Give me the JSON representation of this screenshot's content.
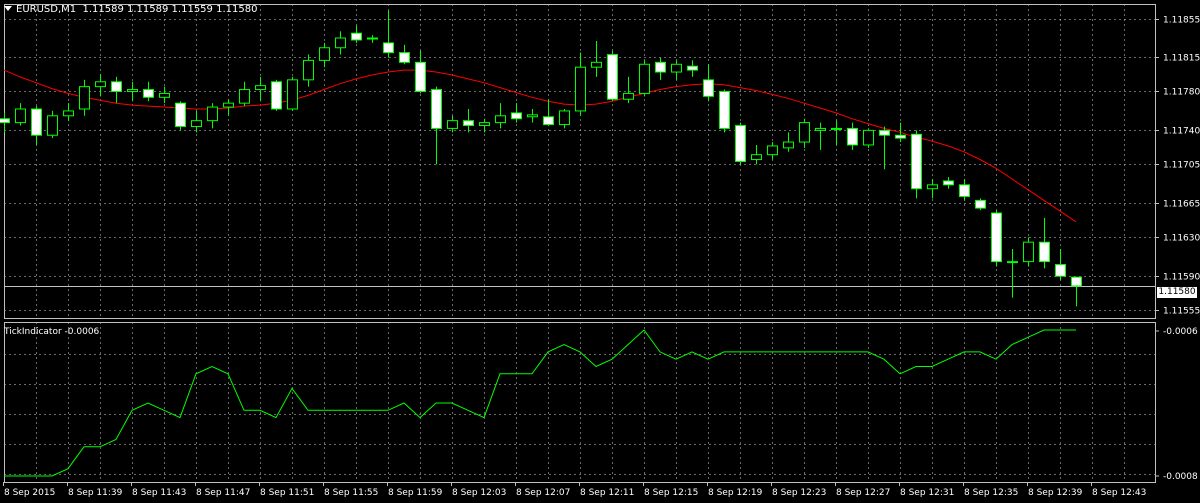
{
  "chart_header": {
    "symbol_period": "EURUSD,M1",
    "ohlc": "1.11589 1.11589 1.11559 1.11580"
  },
  "indicator_header": {
    "name": "TickIndicator",
    "value": "-0.0006"
  },
  "current_price_label": "1.11580",
  "indicator_axis_labels": [
    "-0.0006",
    "-0.0008"
  ],
  "colors": {
    "background": "#000000",
    "grid": "#c0c0c0",
    "bull_candle_body": "#000000",
    "bear_candle_body": "#ffffff",
    "candle_wick": "#00ff00",
    "moving_average": "#ff0000",
    "indicator_line": "#00ff00",
    "text": "#ffffff"
  },
  "chart_data": [
    {
      "type": "candlestick",
      "title": "EURUSD,M1",
      "ylim": [
        1.11547,
        1.1187
      ],
      "y_ticks": [
        "1.11855",
        "1.11815",
        "1.11780",
        "1.11740",
        "1.11705",
        "1.11665",
        "1.11630",
        "1.11590",
        "1.11555"
      ],
      "x_ticks": [
        "8 Sep 2015",
        "8 Sep 11:39",
        "8 Sep 11:43",
        "8 Sep 11:47",
        "8 Sep 11:51",
        "8 Sep 11:55",
        "8 Sep 11:59",
        "8 Sep 12:03",
        "8 Sep 12:07",
        "8 Sep 12:11",
        "8 Sep 12:15",
        "8 Sep 12:19",
        "8 Sep 12:23",
        "8 Sep 12:27",
        "8 Sep 12:31",
        "8 Sep 12:35",
        "8 Sep 12:39",
        "8 Sep 12:43"
      ],
      "grid": true,
      "candles": [
        [
          1.11752,
          1.11758,
          1.11738,
          1.11748
        ],
        [
          1.11748,
          1.11768,
          1.11745,
          1.11762
        ],
        [
          1.11762,
          1.11765,
          1.11725,
          1.11735
        ],
        [
          1.11735,
          1.1176,
          1.11732,
          1.11755
        ],
        [
          1.11755,
          1.11768,
          1.1175,
          1.1176
        ],
        [
          1.11762,
          1.11792,
          1.11755,
          1.11785
        ],
        [
          1.11785,
          1.11798,
          1.11775,
          1.1179
        ],
        [
          1.1179,
          1.11795,
          1.11768,
          1.1178
        ],
        [
          1.1178,
          1.1179,
          1.1177,
          1.11782
        ],
        [
          1.11782,
          1.1179,
          1.1177,
          1.11774
        ],
        [
          1.11774,
          1.11785,
          1.11768,
          1.11778
        ],
        [
          1.11768,
          1.1177,
          1.1174,
          1.11744
        ],
        [
          1.11744,
          1.1176,
          1.11738,
          1.1175
        ],
        [
          1.1175,
          1.11768,
          1.11742,
          1.11764
        ],
        [
          1.11764,
          1.11772,
          1.11755,
          1.11768
        ],
        [
          1.11768,
          1.1179,
          1.11765,
          1.11782
        ],
        [
          1.11782,
          1.11795,
          1.1177,
          1.11786
        ],
        [
          1.1179,
          1.11792,
          1.1176,
          1.11762
        ],
        [
          1.11762,
          1.11795,
          1.1176,
          1.11792
        ],
        [
          1.11792,
          1.11818,
          1.11785,
          1.11812
        ],
        [
          1.11812,
          1.1183,
          1.11805,
          1.11825
        ],
        [
          1.11825,
          1.11842,
          1.11818,
          1.11835
        ],
        [
          1.1184,
          1.11848,
          1.1183,
          1.11833
        ],
        [
          1.11835,
          1.11838,
          1.1183,
          1.11835
        ],
        [
          1.1183,
          1.11863,
          1.11815,
          1.1182
        ],
        [
          1.1182,
          1.11828,
          1.11808,
          1.1181
        ],
        [
          1.1181,
          1.11822,
          1.11778,
          1.1178
        ],
        [
          1.11782,
          1.11785,
          1.11705,
          1.11742
        ],
        [
          1.11742,
          1.11755,
          1.11738,
          1.1175
        ],
        [
          1.1175,
          1.11762,
          1.11738,
          1.11745
        ],
        [
          1.11745,
          1.11752,
          1.11738,
          1.11748
        ],
        [
          1.11748,
          1.11768,
          1.11742,
          1.11755
        ],
        [
          1.11758,
          1.11768,
          1.11748,
          1.11752
        ],
        [
          1.11754,
          1.11762,
          1.11748,
          1.11756
        ],
        [
          1.11754,
          1.11772,
          1.11745,
          1.11746
        ],
        [
          1.11746,
          1.11762,
          1.11742,
          1.1176
        ],
        [
          1.1176,
          1.1182,
          1.11755,
          1.11805
        ],
        [
          1.11805,
          1.11832,
          1.11795,
          1.1181
        ],
        [
          1.11818,
          1.11822,
          1.1177,
          1.11772
        ],
        [
          1.11772,
          1.11795,
          1.11768,
          1.11778
        ],
        [
          1.11778,
          1.11812,
          1.11775,
          1.11808
        ],
        [
          1.1181,
          1.11815,
          1.11792,
          1.118
        ],
        [
          1.118,
          1.11812,
          1.11792,
          1.11808
        ],
        [
          1.11806,
          1.11812,
          1.11795,
          1.11802
        ],
        [
          1.11792,
          1.11808,
          1.1177,
          1.11775
        ],
        [
          1.1178,
          1.11782,
          1.11738,
          1.11742
        ],
        [
          1.11745,
          1.11748,
          1.11705,
          1.11708
        ],
        [
          1.1171,
          1.11725,
          1.11705,
          1.11715
        ],
        [
          1.11715,
          1.11728,
          1.1171,
          1.11724
        ],
        [
          1.11722,
          1.11738,
          1.11718,
          1.11728
        ],
        [
          1.11728,
          1.11752,
          1.11722,
          1.11748
        ],
        [
          1.1174,
          1.11748,
          1.1172,
          1.11742
        ],
        [
          1.11742,
          1.1175,
          1.11725,
          1.11742
        ],
        [
          1.11742,
          1.11748,
          1.1172,
          1.11725
        ],
        [
          1.11725,
          1.11742,
          1.11722,
          1.1174
        ],
        [
          1.1174,
          1.11744,
          1.117,
          1.11735
        ],
        [
          1.11735,
          1.11748,
          1.11728,
          1.11732
        ],
        [
          1.11736,
          1.1174,
          1.1167,
          1.1168
        ],
        [
          1.1168,
          1.1169,
          1.1167,
          1.11684
        ],
        [
          1.11688,
          1.11692,
          1.1168,
          1.11684
        ],
        [
          1.11684,
          1.1169,
          1.11668,
          1.11672
        ],
        [
          1.11668,
          1.1167,
          1.11658,
          1.1166
        ],
        [
          1.11655,
          1.11658,
          1.116,
          1.11605
        ],
        [
          1.11605,
          1.11618,
          1.11568,
          1.11605
        ],
        [
          1.11605,
          1.1163,
          1.116,
          1.11625
        ],
        [
          1.11625,
          1.1165,
          1.11598,
          1.11605
        ],
        [
          1.11602,
          1.11618,
          1.11586,
          1.1159
        ],
        [
          1.11589,
          1.11589,
          1.11559,
          1.1158
        ]
      ],
      "moving_average": [
        1.11802,
        1.11795,
        1.11789,
        1.11783,
        1.11778,
        1.11774,
        1.11771,
        1.11768,
        1.11766,
        1.11765,
        1.11764,
        1.11763,
        1.11762,
        1.11762,
        1.11763,
        1.11765,
        1.11766,
        1.11768,
        1.11771,
        1.11776,
        1.11782,
        1.11788,
        1.11793,
        1.11797,
        1.118,
        1.11802,
        1.11802,
        1.118,
        1.11797,
        1.11793,
        1.11789,
        1.11784,
        1.11779,
        1.11774,
        1.1177,
        1.11767,
        1.11766,
        1.11767,
        1.1177,
        1.11774,
        1.11778,
        1.11782,
        1.11785,
        1.11787,
        1.11788,
        1.11787,
        1.11784,
        1.11781,
        1.11777,
        1.11773,
        1.11768,
        1.11763,
        1.11758,
        1.11752,
        1.11747,
        1.11742,
        1.11738,
        1.11733,
        1.11729,
        1.11724,
        1.11718,
        1.1171,
        1.11701,
        1.1169,
        1.11679,
        1.11668,
        1.11657,
        1.11646
      ]
    },
    {
      "type": "line",
      "title": "TickIndicator -0.0006",
      "ylim": [
        -0.0008,
        -0.0006
      ],
      "series": [
        {
          "values": [
            -0.0008,
            -0.0008,
            -0.0008,
            -0.0008,
            -0.00079,
            -0.00076,
            -0.00076,
            -0.00075,
            -0.00071,
            -0.0007,
            -0.00071,
            -0.00072,
            -0.00066,
            -0.00065,
            -0.00066,
            -0.00071,
            -0.00071,
            -0.00072,
            -0.00068,
            -0.00071,
            -0.00071,
            -0.00071,
            -0.00071,
            -0.00071,
            -0.00071,
            -0.0007,
            -0.00072,
            -0.0007,
            -0.0007,
            -0.00071,
            -0.00072,
            -0.00066,
            -0.00066,
            -0.00066,
            -0.00063,
            -0.00062,
            -0.00063,
            -0.00065,
            -0.00064,
            -0.00062,
            -0.0006,
            -0.00063,
            -0.00064,
            -0.00063,
            -0.00064,
            -0.00063,
            -0.00063,
            -0.00063,
            -0.00063,
            -0.00063,
            -0.00063,
            -0.00063,
            -0.00063,
            -0.00063,
            -0.00063,
            -0.00064,
            -0.00066,
            -0.00065,
            -0.00065,
            -0.00064,
            -0.00063,
            -0.00063,
            -0.00064,
            -0.00062,
            -0.00061,
            -0.0006,
            -0.0006,
            -0.0006
          ]
        }
      ]
    }
  ]
}
